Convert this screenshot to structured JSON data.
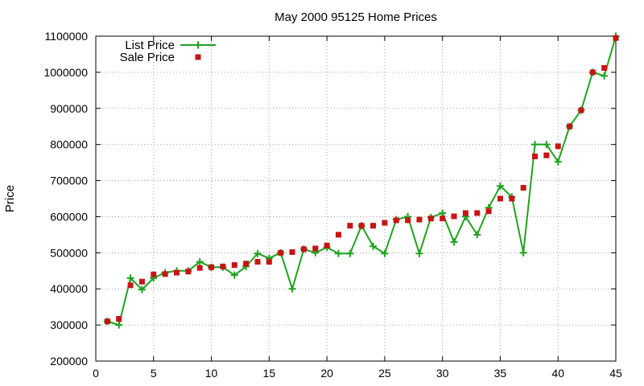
{
  "chart_data": {
    "type": "line",
    "title": "May 2000 95125 Home Prices",
    "xlabel": "",
    "ylabel": "Price",
    "xlim": [
      0,
      45
    ],
    "ylim": [
      200000,
      1100000
    ],
    "xticks": [
      0,
      5,
      10,
      15,
      20,
      25,
      30,
      35,
      40,
      45
    ],
    "yticks": [
      200000,
      300000,
      400000,
      500000,
      600000,
      700000,
      800000,
      900000,
      1000000,
      1100000
    ],
    "grid": true,
    "legend_position": "top-left",
    "series": [
      {
        "name": "List Price",
        "style": "line-plus",
        "color": "#1fa31f",
        "x": [
          1,
          2,
          3,
          4,
          5,
          6,
          7,
          8,
          9,
          10,
          11,
          12,
          13,
          14,
          15,
          16,
          17,
          18,
          19,
          20,
          21,
          22,
          23,
          24,
          25,
          26,
          27,
          28,
          29,
          30,
          31,
          32,
          33,
          34,
          35,
          36,
          37,
          38,
          39,
          40,
          41,
          42,
          43,
          44,
          45
        ],
        "y": [
          310000,
          300000,
          430000,
          398000,
          430000,
          445000,
          450000,
          450000,
          475000,
          460000,
          460000,
          438000,
          462000,
          498000,
          485000,
          500000,
          400000,
          510000,
          500000,
          515000,
          498000,
          498000,
          575000,
          518000,
          498000,
          592000,
          600000,
          498000,
          598000,
          610000,
          530000,
          600000,
          550000,
          625000,
          685000,
          655000,
          500000,
          800000,
          800000,
          752000,
          850000,
          895000,
          1000000,
          990000,
          1100000
        ]
      },
      {
        "name": "Sale Price",
        "style": "square",
        "color": "#c81414",
        "x": [
          1,
          2,
          3,
          4,
          5,
          6,
          7,
          8,
          9,
          10,
          11,
          12,
          13,
          14,
          15,
          16,
          17,
          18,
          19,
          20,
          21,
          22,
          23,
          24,
          25,
          26,
          27,
          28,
          29,
          30,
          31,
          32,
          33,
          34,
          35,
          36,
          37,
          38,
          39,
          40,
          41,
          42,
          43,
          44,
          45
        ],
        "y": [
          310000,
          317000,
          410000,
          420000,
          440000,
          441000,
          445000,
          448000,
          458000,
          460000,
          462000,
          466000,
          470000,
          475000,
          475000,
          500000,
          502000,
          510000,
          512000,
          520000,
          550000,
          575000,
          575000,
          575000,
          583000,
          590000,
          590000,
          592000,
          595000,
          595000,
          601000,
          610000,
          610000,
          615000,
          650000,
          650000,
          680000,
          767000,
          770000,
          795000,
          850000,
          895000,
          1000000,
          1012000,
          1095000
        ]
      }
    ]
  }
}
